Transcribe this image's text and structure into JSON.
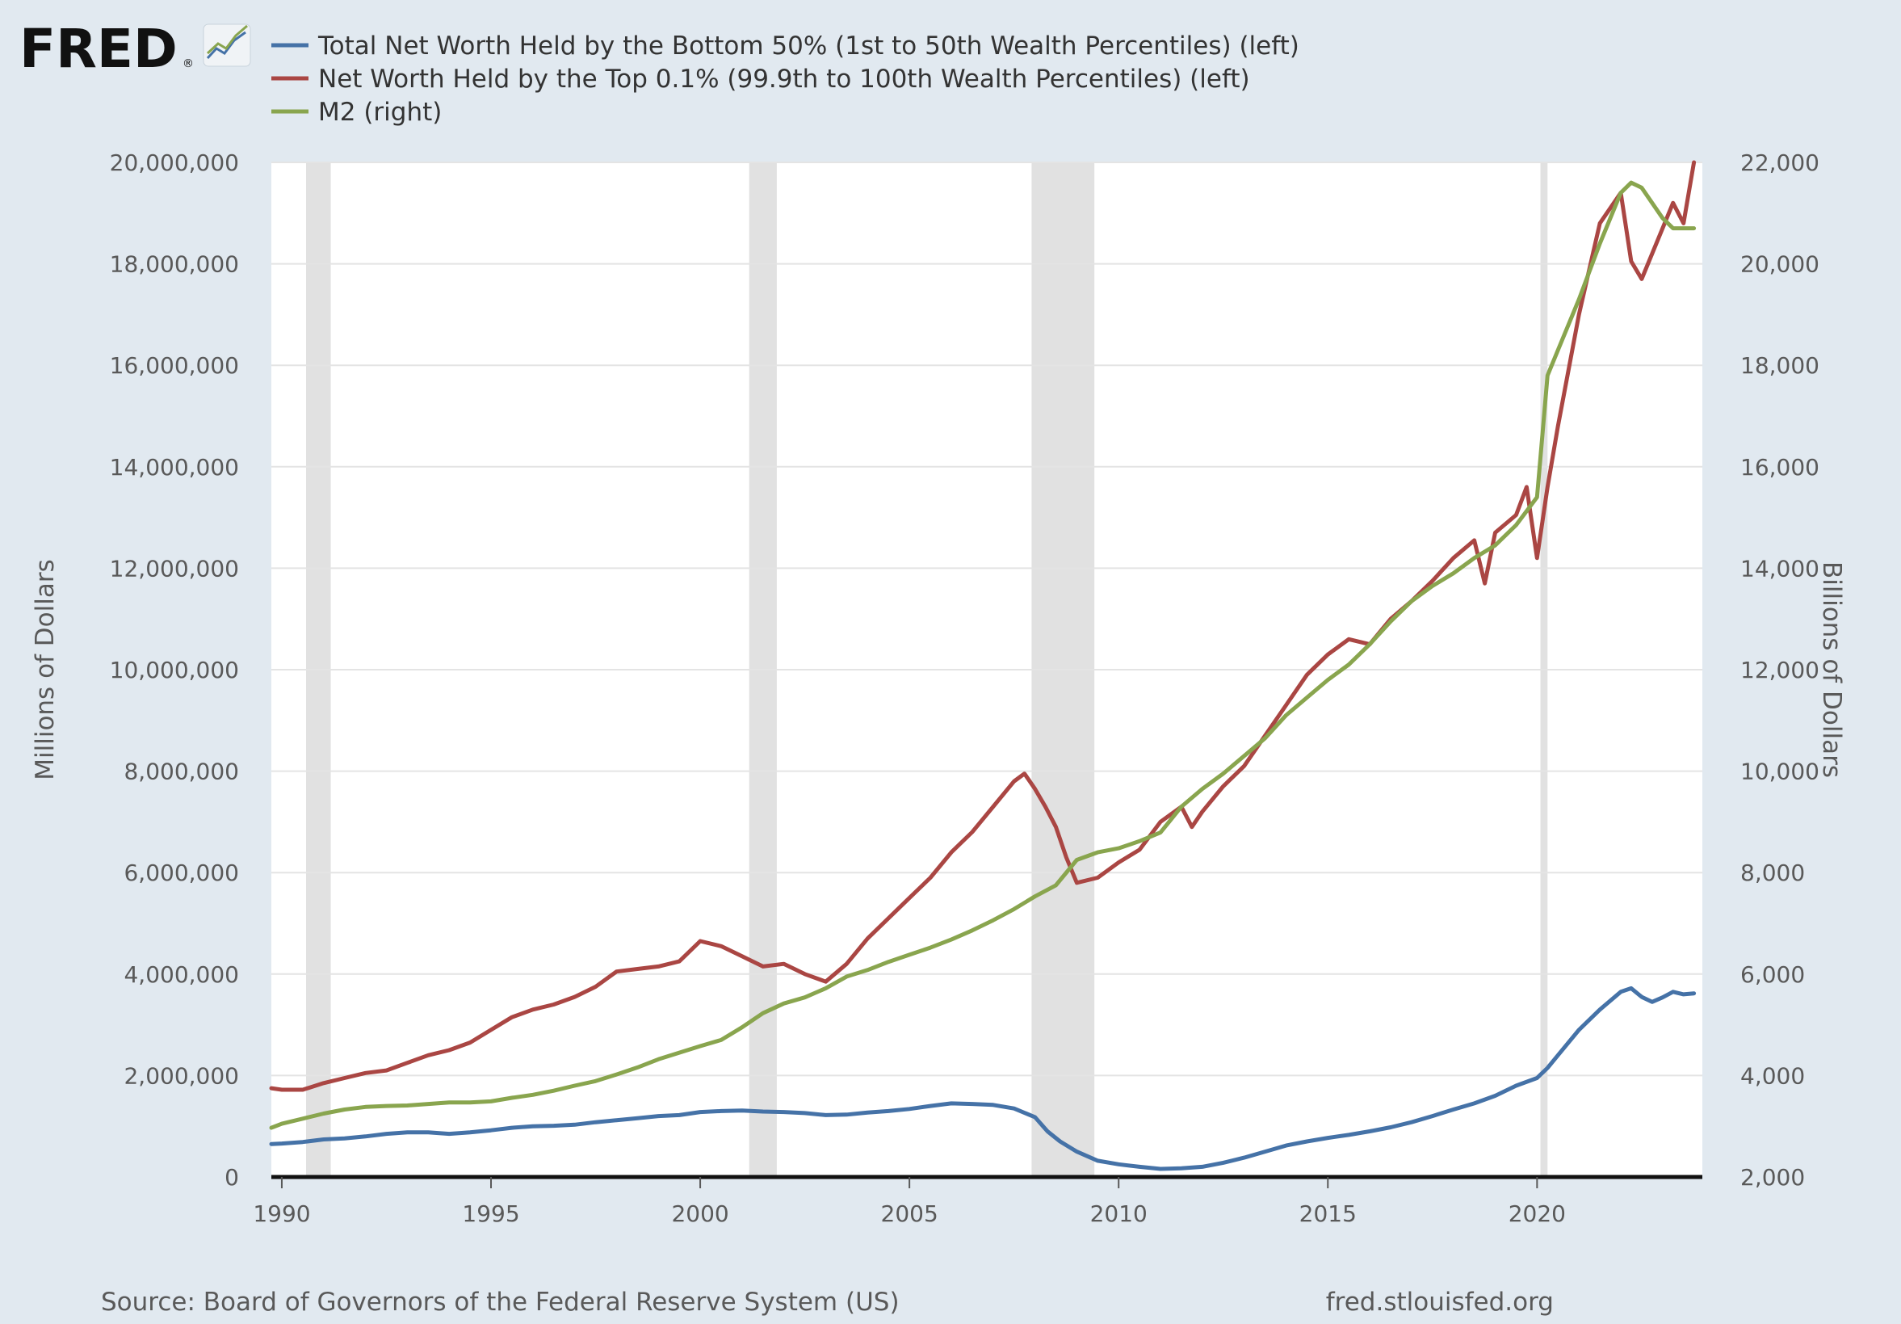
{
  "logo": {
    "text": "FRED",
    "mark": "®",
    "icon": "fred-line-chart-icon"
  },
  "colors": {
    "background": "#e1e9f0",
    "plot": "#ffffff",
    "recession": "#e1e1e1",
    "bottom50": "#4572a7",
    "top01": "#aa4643",
    "m2": "#89a54e",
    "grid": "#e4e4e4"
  },
  "footer": {
    "source": "Source: Board of Governors of the Federal Reserve System (US)",
    "url": "fred.stlouisfed.org"
  },
  "chart_data": {
    "type": "line",
    "x_ticks": [
      "1990",
      "1995",
      "2000",
      "2005",
      "2010",
      "2015",
      "2020"
    ],
    "x_range": [
      1989.75,
      2023.95
    ],
    "left_axis": {
      "label": "Millions of Dollars",
      "range": [
        0,
        20000000
      ],
      "ticks": [
        "0",
        "2,000,000",
        "4,000,000",
        "6,000,000",
        "8,000,000",
        "10,000,000",
        "12,000,000",
        "14,000,000",
        "16,000,000",
        "18,000,000",
        "20,000,000"
      ]
    },
    "right_axis": {
      "label": "Billions of Dollars",
      "range": [
        2000,
        22000
      ],
      "ticks": [
        "2,000",
        "4,000",
        "6,000",
        "8,000",
        "10,000",
        "12,000",
        "14,000",
        "16,000",
        "18,000",
        "20,000",
        "22,000"
      ]
    },
    "grid": true,
    "legend_position": "top-left",
    "recessions": [
      {
        "start": 1990.58,
        "end": 1991.17
      },
      {
        "start": 2001.17,
        "end": 2001.83
      },
      {
        "start": 2007.92,
        "end": 2009.42
      },
      {
        "start": 2020.08,
        "end": 2020.25
      }
    ],
    "series": [
      {
        "name": "Total Net Worth Held by the Bottom 50% (1st to 50th Wealth Percentiles) (left)",
        "axis": "left",
        "points": [
          [
            1989.75,
            650000
          ],
          [
            1990,
            660000
          ],
          [
            1990.5,
            690000
          ],
          [
            1991,
            740000
          ],
          [
            1991.5,
            760000
          ],
          [
            1992,
            800000
          ],
          [
            1992.5,
            850000
          ],
          [
            1993,
            880000
          ],
          [
            1993.5,
            880000
          ],
          [
            1994,
            850000
          ],
          [
            1994.5,
            880000
          ],
          [
            1995,
            920000
          ],
          [
            1995.5,
            970000
          ],
          [
            1996,
            1000000
          ],
          [
            1996.5,
            1010000
          ],
          [
            1997,
            1030000
          ],
          [
            1997.5,
            1080000
          ],
          [
            1998,
            1120000
          ],
          [
            1998.5,
            1160000
          ],
          [
            1999,
            1200000
          ],
          [
            1999.5,
            1220000
          ],
          [
            2000,
            1280000
          ],
          [
            2000.5,
            1300000
          ],
          [
            2001,
            1310000
          ],
          [
            2001.5,
            1290000
          ],
          [
            2002,
            1280000
          ],
          [
            2002.5,
            1260000
          ],
          [
            2003,
            1220000
          ],
          [
            2003.5,
            1230000
          ],
          [
            2004,
            1270000
          ],
          [
            2004.5,
            1300000
          ],
          [
            2005,
            1340000
          ],
          [
            2005.5,
            1400000
          ],
          [
            2006,
            1450000
          ],
          [
            2006.5,
            1440000
          ],
          [
            2007,
            1420000
          ],
          [
            2007.5,
            1350000
          ],
          [
            2008,
            1180000
          ],
          [
            2008.3,
            900000
          ],
          [
            2008.6,
            700000
          ],
          [
            2009,
            500000
          ],
          [
            2009.5,
            320000
          ],
          [
            2010,
            250000
          ],
          [
            2010.5,
            200000
          ],
          [
            2011,
            160000
          ],
          [
            2011.5,
            170000
          ],
          [
            2012,
            200000
          ],
          [
            2012.5,
            280000
          ],
          [
            2013,
            380000
          ],
          [
            2013.5,
            500000
          ],
          [
            2014,
            620000
          ],
          [
            2014.5,
            700000
          ],
          [
            2015,
            770000
          ],
          [
            2015.5,
            830000
          ],
          [
            2016,
            900000
          ],
          [
            2016.5,
            980000
          ],
          [
            2017,
            1080000
          ],
          [
            2017.5,
            1200000
          ],
          [
            2018,
            1330000
          ],
          [
            2018.5,
            1450000
          ],
          [
            2019,
            1600000
          ],
          [
            2019.5,
            1800000
          ],
          [
            2020,
            1950000
          ],
          [
            2020.25,
            2150000
          ],
          [
            2020.5,
            2400000
          ],
          [
            2021,
            2900000
          ],
          [
            2021.5,
            3300000
          ],
          [
            2022,
            3650000
          ],
          [
            2022.25,
            3720000
          ],
          [
            2022.5,
            3550000
          ],
          [
            2022.75,
            3450000
          ],
          [
            2023,
            3540000
          ],
          [
            2023.25,
            3650000
          ],
          [
            2023.5,
            3600000
          ],
          [
            2023.75,
            3620000
          ]
        ]
      },
      {
        "name": "Net Worth Held by the Top 0.1% (99.9th to 100th Wealth Percentiles) (left)",
        "axis": "left",
        "points": [
          [
            1989.75,
            1750000
          ],
          [
            1990,
            1720000
          ],
          [
            1990.5,
            1720000
          ],
          [
            1991,
            1850000
          ],
          [
            1991.5,
            1950000
          ],
          [
            1992,
            2050000
          ],
          [
            1992.5,
            2100000
          ],
          [
            1993,
            2250000
          ],
          [
            1993.5,
            2400000
          ],
          [
            1994,
            2500000
          ],
          [
            1994.5,
            2650000
          ],
          [
            1995,
            2900000
          ],
          [
            1995.5,
            3150000
          ],
          [
            1996,
            3300000
          ],
          [
            1996.5,
            3400000
          ],
          [
            1997,
            3550000
          ],
          [
            1997.5,
            3750000
          ],
          [
            1998,
            4050000
          ],
          [
            1998.5,
            4100000
          ],
          [
            1999,
            4150000
          ],
          [
            1999.5,
            4250000
          ],
          [
            2000,
            4650000
          ],
          [
            2000.5,
            4550000
          ],
          [
            2001,
            4350000
          ],
          [
            2001.5,
            4150000
          ],
          [
            2002,
            4200000
          ],
          [
            2002.5,
            4000000
          ],
          [
            2003,
            3850000
          ],
          [
            2003.5,
            4200000
          ],
          [
            2004,
            4700000
          ],
          [
            2004.5,
            5100000
          ],
          [
            2005,
            5500000
          ],
          [
            2005.5,
            5900000
          ],
          [
            2006,
            6400000
          ],
          [
            2006.5,
            6800000
          ],
          [
            2007,
            7300000
          ],
          [
            2007.5,
            7800000
          ],
          [
            2007.75,
            7950000
          ],
          [
            2008,
            7650000
          ],
          [
            2008.25,
            7300000
          ],
          [
            2008.5,
            6900000
          ],
          [
            2008.75,
            6300000
          ],
          [
            2009,
            5800000
          ],
          [
            2009.5,
            5900000
          ],
          [
            2010,
            6200000
          ],
          [
            2010.5,
            6450000
          ],
          [
            2011,
            7000000
          ],
          [
            2011.5,
            7300000
          ],
          [
            2011.75,
            6900000
          ],
          [
            2012,
            7200000
          ],
          [
            2012.5,
            7700000
          ],
          [
            2013,
            8100000
          ],
          [
            2013.5,
            8700000
          ],
          [
            2014,
            9300000
          ],
          [
            2014.5,
            9900000
          ],
          [
            2015,
            10300000
          ],
          [
            2015.5,
            10600000
          ],
          [
            2016,
            10500000
          ],
          [
            2016.5,
            11000000
          ],
          [
            2017,
            11350000
          ],
          [
            2017.5,
            11750000
          ],
          [
            2018,
            12200000
          ],
          [
            2018.5,
            12550000
          ],
          [
            2018.75,
            11700000
          ],
          [
            2019,
            12700000
          ],
          [
            2019.5,
            13050000
          ],
          [
            2019.75,
            13600000
          ],
          [
            2020,
            12200000
          ],
          [
            2020.25,
            13600000
          ],
          [
            2020.5,
            14800000
          ],
          [
            2021,
            17000000
          ],
          [
            2021.5,
            18800000
          ],
          [
            2022,
            19400000
          ],
          [
            2022.25,
            18050000
          ],
          [
            2022.5,
            17700000
          ],
          [
            2023,
            18700000
          ],
          [
            2023.25,
            19200000
          ],
          [
            2023.5,
            18800000
          ],
          [
            2023.75,
            20000000
          ]
        ]
      },
      {
        "name": "M2 (right)",
        "axis": "right",
        "points": [
          [
            1989.75,
            2970
          ],
          [
            1990,
            3050
          ],
          [
            1990.5,
            3150
          ],
          [
            1991,
            3250
          ],
          [
            1991.5,
            3330
          ],
          [
            1992,
            3380
          ],
          [
            1992.5,
            3400
          ],
          [
            1993,
            3410
          ],
          [
            1993.5,
            3440
          ],
          [
            1994,
            3470
          ],
          [
            1994.5,
            3470
          ],
          [
            1995,
            3490
          ],
          [
            1995.5,
            3560
          ],
          [
            1996,
            3620
          ],
          [
            1996.5,
            3700
          ],
          [
            1997,
            3800
          ],
          [
            1997.5,
            3890
          ],
          [
            1998,
            4020
          ],
          [
            1998.5,
            4160
          ],
          [
            1999,
            4320
          ],
          [
            1999.5,
            4450
          ],
          [
            2000,
            4580
          ],
          [
            2000.5,
            4700
          ],
          [
            2001,
            4950
          ],
          [
            2001.5,
            5230
          ],
          [
            2002,
            5420
          ],
          [
            2002.5,
            5540
          ],
          [
            2003,
            5720
          ],
          [
            2003.5,
            5950
          ],
          [
            2004,
            6080
          ],
          [
            2004.5,
            6240
          ],
          [
            2005,
            6380
          ],
          [
            2005.5,
            6520
          ],
          [
            2006,
            6680
          ],
          [
            2006.5,
            6860
          ],
          [
            2007,
            7060
          ],
          [
            2007.5,
            7280
          ],
          [
            2008,
            7530
          ],
          [
            2008.5,
            7750
          ],
          [
            2009,
            8250
          ],
          [
            2009.5,
            8400
          ],
          [
            2010,
            8480
          ],
          [
            2010.5,
            8620
          ],
          [
            2011,
            8790
          ],
          [
            2011.5,
            9300
          ],
          [
            2012,
            9650
          ],
          [
            2012.5,
            9950
          ],
          [
            2013,
            10300
          ],
          [
            2013.5,
            10650
          ],
          [
            2014,
            11100
          ],
          [
            2014.5,
            11450
          ],
          [
            2015,
            11800
          ],
          [
            2015.5,
            12100
          ],
          [
            2016,
            12500
          ],
          [
            2016.5,
            12950
          ],
          [
            2017,
            13350
          ],
          [
            2017.5,
            13650
          ],
          [
            2018,
            13900
          ],
          [
            2018.5,
            14200
          ],
          [
            2019,
            14450
          ],
          [
            2019.5,
            14850
          ],
          [
            2020,
            15400
          ],
          [
            2020.25,
            17800
          ],
          [
            2020.5,
            18300
          ],
          [
            2021,
            19300
          ],
          [
            2021.5,
            20400
          ],
          [
            2022,
            21400
          ],
          [
            2022.25,
            21600
          ],
          [
            2022.5,
            21500
          ],
          [
            2022.75,
            21200
          ],
          [
            2023,
            20900
          ],
          [
            2023.25,
            20700
          ],
          [
            2023.5,
            20700
          ],
          [
            2023.75,
            20700
          ]
        ]
      }
    ]
  }
}
